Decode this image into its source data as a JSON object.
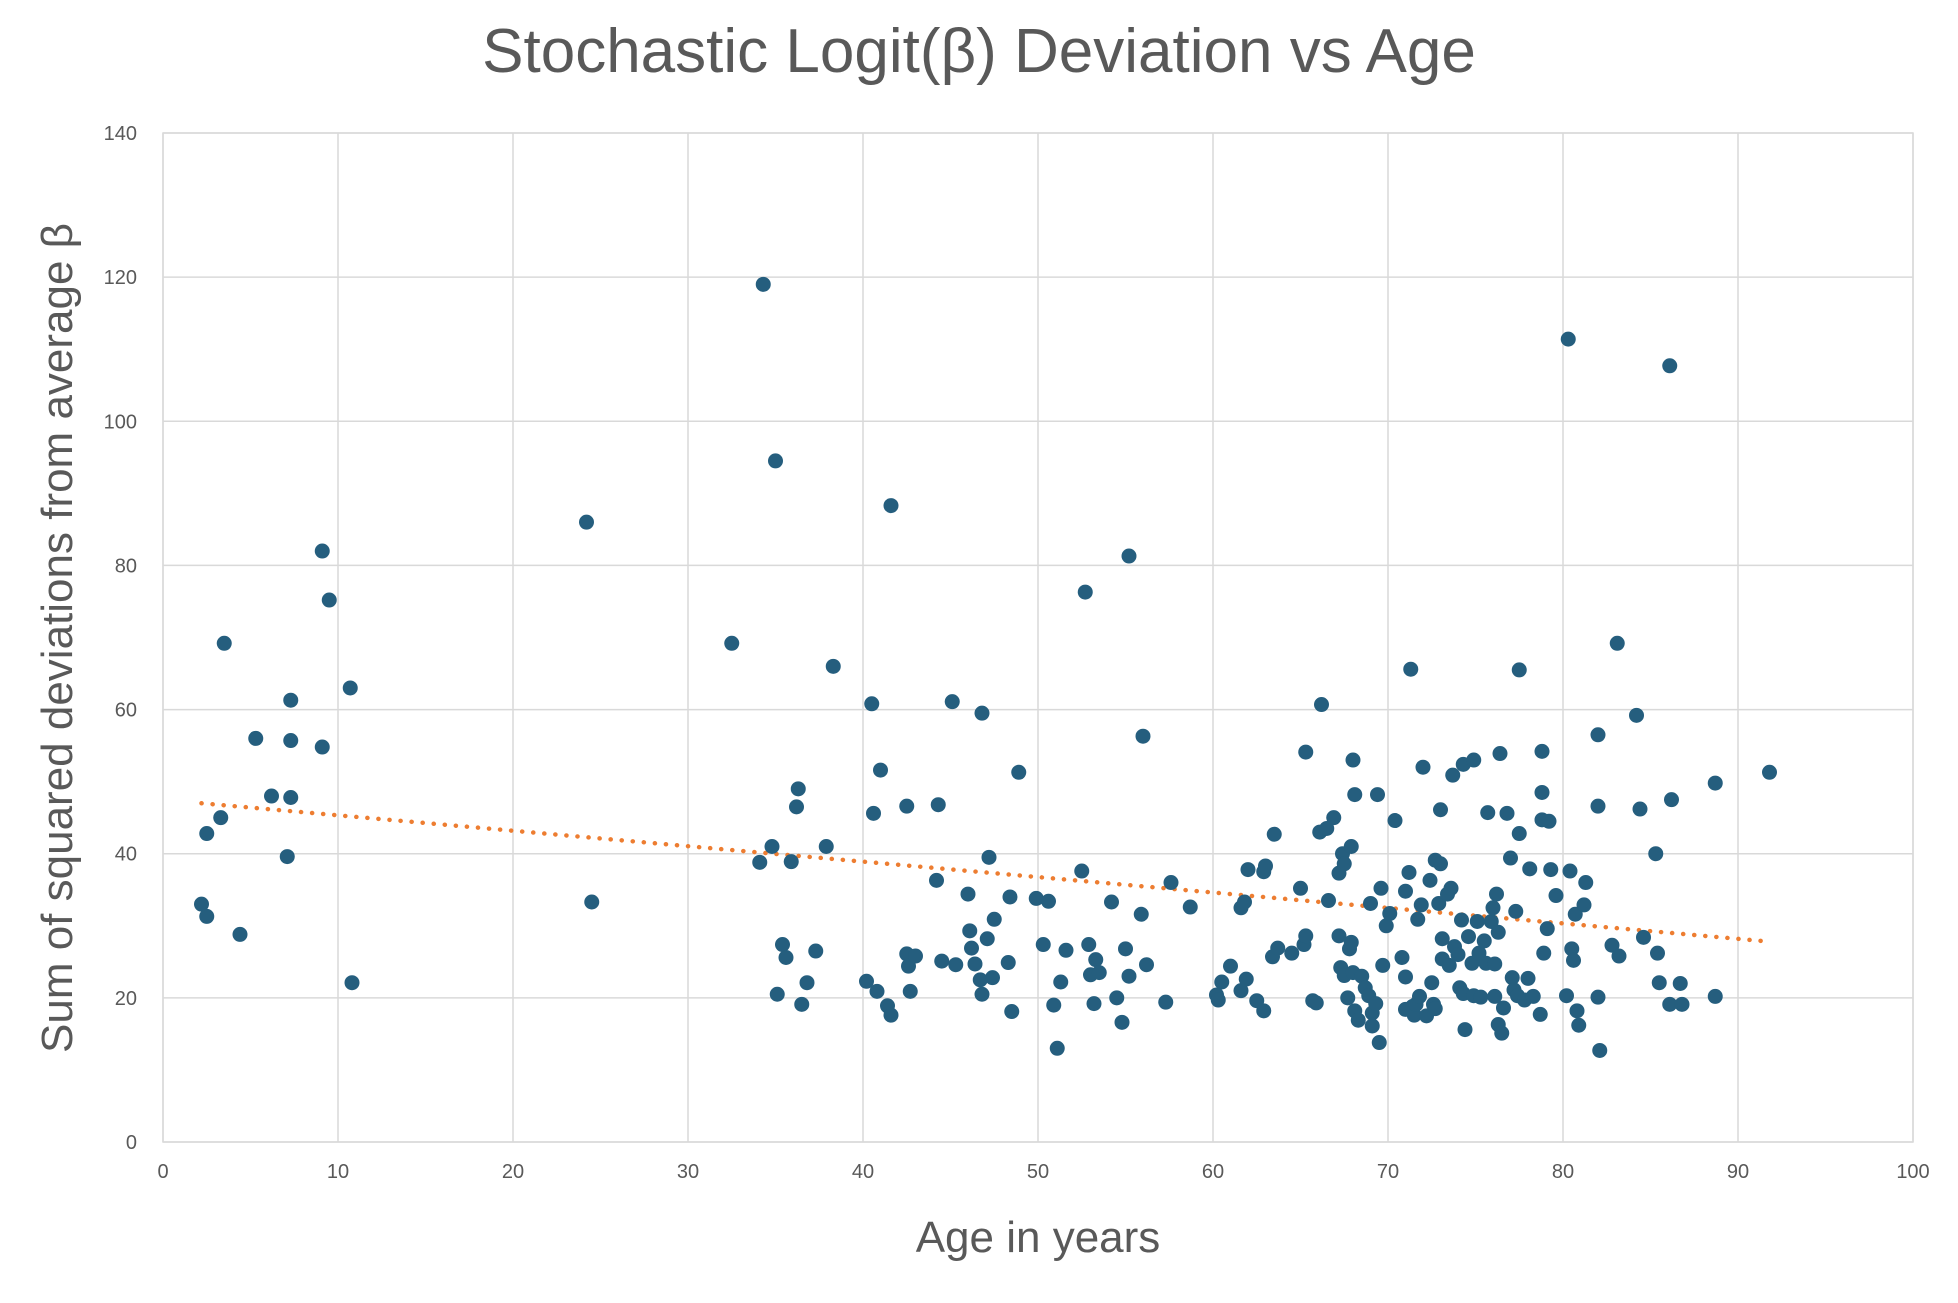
{
  "chart_data": {
    "type": "scatter",
    "title": "Stochastic Logit(β) Deviation vs Age",
    "xlabel": "Age in years",
    "ylabel": "Sum of squared deviations from average β",
    "xlim": [
      0,
      100
    ],
    "ylim": [
      0,
      140
    ],
    "x_ticks": [
      0,
      10,
      20,
      30,
      40,
      50,
      60,
      70,
      80,
      90,
      100
    ],
    "y_ticks": [
      0,
      20,
      40,
      60,
      80,
      100,
      120,
      140
    ],
    "grid": true,
    "legend": "none",
    "colors": {
      "points": "#255e7e",
      "trendline": "#ed7d31",
      "grid": "#d9d9d9",
      "text": "#595959"
    },
    "trendline": {
      "type": "linear",
      "style": "dotted",
      "x": [
        2.2,
        91.8
      ],
      "y": [
        47.0,
        27.8
      ]
    },
    "series": [
      {
        "points": [
          [
            2.2,
            33.0
          ],
          [
            2.5,
            31.3
          ],
          [
            2.5,
            42.8
          ],
          [
            3.3,
            45.0
          ],
          [
            3.5,
            69.2
          ],
          [
            4.4,
            28.8
          ],
          [
            5.3,
            56.0
          ],
          [
            6.2,
            48.0
          ],
          [
            7.1,
            39.6
          ],
          [
            7.3,
            61.3
          ],
          [
            7.3,
            55.7
          ],
          [
            7.3,
            47.8
          ],
          [
            9.1,
            82.0
          ],
          [
            9.1,
            54.8
          ],
          [
            9.5,
            75.2
          ],
          [
            10.7,
            63.0
          ],
          [
            10.8,
            22.1
          ],
          [
            24.2,
            86.0
          ],
          [
            24.5,
            33.3
          ],
          [
            32.5,
            69.2
          ],
          [
            34.1,
            38.8
          ],
          [
            34.3,
            119.0
          ],
          [
            34.8,
            41.0
          ],
          [
            35.0,
            94.5
          ],
          [
            35.1,
            20.5
          ],
          [
            35.4,
            27.4
          ],
          [
            35.6,
            25.6
          ],
          [
            35.9,
            38.9
          ],
          [
            36.2,
            46.5
          ],
          [
            36.3,
            49.0
          ],
          [
            36.5,
            19.1
          ],
          [
            36.8,
            22.1
          ],
          [
            37.3,
            26.5
          ],
          [
            37.9,
            41.0
          ],
          [
            38.3,
            66.0
          ],
          [
            40.2,
            22.3
          ],
          [
            40.5,
            60.8
          ],
          [
            40.6,
            45.6
          ],
          [
            40.8,
            20.9
          ],
          [
            41.0,
            51.6
          ],
          [
            41.4,
            18.9
          ],
          [
            41.6,
            17.6
          ],
          [
            41.6,
            88.3
          ],
          [
            42.5,
            46.6
          ],
          [
            42.5,
            26.1
          ],
          [
            42.6,
            24.4
          ],
          [
            42.7,
            20.9
          ],
          [
            43.0,
            25.8
          ],
          [
            44.2,
            36.3
          ],
          [
            44.3,
            46.8
          ],
          [
            44.5,
            25.1
          ],
          [
            45.1,
            61.1
          ],
          [
            45.3,
            24.6
          ],
          [
            46.0,
            34.4
          ],
          [
            46.1,
            29.3
          ],
          [
            46.2,
            26.9
          ],
          [
            46.4,
            24.7
          ],
          [
            46.7,
            22.5
          ],
          [
            46.8,
            59.5
          ],
          [
            46.8,
            20.5
          ],
          [
            47.1,
            28.2
          ],
          [
            47.2,
            39.5
          ],
          [
            47.4,
            22.8
          ],
          [
            47.5,
            30.9
          ],
          [
            48.4,
            34.0
          ],
          [
            48.5,
            18.1
          ],
          [
            48.3,
            24.9
          ],
          [
            48.9,
            51.3
          ],
          [
            49.9,
            33.8
          ],
          [
            50.3,
            27.4
          ],
          [
            50.6,
            33.4
          ],
          [
            50.9,
            19.0
          ],
          [
            51.1,
            13.0
          ],
          [
            51.3,
            22.2
          ],
          [
            51.6,
            26.6
          ],
          [
            52.5,
            37.6
          ],
          [
            52.7,
            76.3
          ],
          [
            52.9,
            27.4
          ],
          [
            53.0,
            23.2
          ],
          [
            53.2,
            19.2
          ],
          [
            53.3,
            25.3
          ],
          [
            53.5,
            23.5
          ],
          [
            54.2,
            33.3
          ],
          [
            54.5,
            20.0
          ],
          [
            54.8,
            16.6
          ],
          [
            55.0,
            26.8
          ],
          [
            55.2,
            81.3
          ],
          [
            55.2,
            23.0
          ],
          [
            55.9,
            31.6
          ],
          [
            56.0,
            56.3
          ],
          [
            56.2,
            24.6
          ],
          [
            57.3,
            19.4
          ],
          [
            57.6,
            36.0
          ],
          [
            58.7,
            32.6
          ],
          [
            60.2,
            20.4
          ],
          [
            60.3,
            19.7
          ],
          [
            60.5,
            22.2
          ],
          [
            61.0,
            24.4
          ],
          [
            61.6,
            21.0
          ],
          [
            61.6,
            32.5
          ],
          [
            61.8,
            33.3
          ],
          [
            61.9,
            22.6
          ],
          [
            62.0,
            37.8
          ],
          [
            62.5,
            19.6
          ],
          [
            62.9,
            18.2
          ],
          [
            62.9,
            37.5
          ],
          [
            63.0,
            38.3
          ],
          [
            63.4,
            25.7
          ],
          [
            63.5,
            42.7
          ],
          [
            63.7,
            26.9
          ],
          [
            64.5,
            26.2
          ],
          [
            65.0,
            35.2
          ],
          [
            65.2,
            27.4
          ],
          [
            65.3,
            54.1
          ],
          [
            65.3,
            28.6
          ],
          [
            65.7,
            19.6
          ],
          [
            65.9,
            19.3
          ],
          [
            66.1,
            43.0
          ],
          [
            66.2,
            60.7
          ],
          [
            66.5,
            43.5
          ],
          [
            66.6,
            33.5
          ],
          [
            66.9,
            45.0
          ],
          [
            67.2,
            28.6
          ],
          [
            67.2,
            37.3
          ],
          [
            67.3,
            24.2
          ],
          [
            67.4,
            40.0
          ],
          [
            67.5,
            23.1
          ],
          [
            67.5,
            38.6
          ],
          [
            67.7,
            20.0
          ],
          [
            67.8,
            26.8
          ],
          [
            67.9,
            27.7
          ],
          [
            67.9,
            41.0
          ],
          [
            68.0,
            23.5
          ],
          [
            68.0,
            53.0
          ],
          [
            68.1,
            48.2
          ],
          [
            68.1,
            18.2
          ],
          [
            68.3,
            16.9
          ],
          [
            68.5,
            23.0
          ],
          [
            68.7,
            21.4
          ],
          [
            68.9,
            20.3
          ],
          [
            69.0,
            33.1
          ],
          [
            69.1,
            16.1
          ],
          [
            69.1,
            17.9
          ],
          [
            69.3,
            19.2
          ],
          [
            69.4,
            48.2
          ],
          [
            69.5,
            13.8
          ],
          [
            69.6,
            35.2
          ],
          [
            69.7,
            24.5
          ],
          [
            69.9,
            30.0
          ],
          [
            70.1,
            31.7
          ],
          [
            70.4,
            44.6
          ],
          [
            70.8,
            25.6
          ],
          [
            71.0,
            34.8
          ],
          [
            71.0,
            18.4
          ],
          [
            71.0,
            22.9
          ],
          [
            71.2,
            37.4
          ],
          [
            71.3,
            65.6
          ],
          [
            71.4,
            18.8
          ],
          [
            71.5,
            17.6
          ],
          [
            71.6,
            19.1
          ],
          [
            71.7,
            30.9
          ],
          [
            71.8,
            20.2
          ],
          [
            71.9,
            32.9
          ],
          [
            72.0,
            52.0
          ],
          [
            72.2,
            17.5
          ],
          [
            72.4,
            36.3
          ],
          [
            72.5,
            22.1
          ],
          [
            72.6,
            19.1
          ],
          [
            72.7,
            39.1
          ],
          [
            72.7,
            18.5
          ],
          [
            72.9,
            33.1
          ],
          [
            73.0,
            46.1
          ],
          [
            73.0,
            38.6
          ],
          [
            73.1,
            25.4
          ],
          [
            73.1,
            28.2
          ],
          [
            73.4,
            34.4
          ],
          [
            73.5,
            24.5
          ],
          [
            73.6,
            35.2
          ],
          [
            73.7,
            50.9
          ],
          [
            73.8,
            27.1
          ],
          [
            74.0,
            26.0
          ],
          [
            74.1,
            21.4
          ],
          [
            74.2,
            30.8
          ],
          [
            74.3,
            52.4
          ],
          [
            74.3,
            20.6
          ],
          [
            74.4,
            15.6
          ],
          [
            74.6,
            28.5
          ],
          [
            74.8,
            24.8
          ],
          [
            74.9,
            53.0
          ],
          [
            74.9,
            20.3
          ],
          [
            75.1,
            30.6
          ],
          [
            75.2,
            26.2
          ],
          [
            75.3,
            20.1
          ],
          [
            75.5,
            27.9
          ],
          [
            75.6,
            24.8
          ],
          [
            75.7,
            45.7
          ],
          [
            75.9,
            30.6
          ],
          [
            76.0,
            32.5
          ],
          [
            76.1,
            24.7
          ],
          [
            76.1,
            20.2
          ],
          [
            76.2,
            34.4
          ],
          [
            76.3,
            16.3
          ],
          [
            76.3,
            29.1
          ],
          [
            76.4,
            53.9
          ],
          [
            76.5,
            15.1
          ],
          [
            76.6,
            18.6
          ],
          [
            76.8,
            45.6
          ],
          [
            77.0,
            39.4
          ],
          [
            77.1,
            22.8
          ],
          [
            77.2,
            21.1
          ],
          [
            77.3,
            32.0
          ],
          [
            77.4,
            20.3
          ],
          [
            77.5,
            42.8
          ],
          [
            77.5,
            65.5
          ],
          [
            77.8,
            19.7
          ],
          [
            78.0,
            22.7
          ],
          [
            78.1,
            37.9
          ],
          [
            78.3,
            20.2
          ],
          [
            78.7,
            17.7
          ],
          [
            78.8,
            54.2
          ],
          [
            78.8,
            48.5
          ],
          [
            78.8,
            44.7
          ],
          [
            78.9,
            26.2
          ],
          [
            79.1,
            29.6
          ],
          [
            79.2,
            44.5
          ],
          [
            79.3,
            37.8
          ],
          [
            79.6,
            34.2
          ],
          [
            80.2,
            20.3
          ],
          [
            80.3,
            111.4
          ],
          [
            80.4,
            37.6
          ],
          [
            80.5,
            26.8
          ],
          [
            80.6,
            25.2
          ],
          [
            80.7,
            31.6
          ],
          [
            80.8,
            18.2
          ],
          [
            80.9,
            16.2
          ],
          [
            81.2,
            32.9
          ],
          [
            81.3,
            36.0
          ],
          [
            82.0,
            20.1
          ],
          [
            82.0,
            56.5
          ],
          [
            82.0,
            46.6
          ],
          [
            82.1,
            12.7
          ],
          [
            82.8,
            27.3
          ],
          [
            83.1,
            69.2
          ],
          [
            83.2,
            25.8
          ],
          [
            84.2,
            59.2
          ],
          [
            84.4,
            46.2
          ],
          [
            84.6,
            28.4
          ],
          [
            85.3,
            40.0
          ],
          [
            85.4,
            26.2
          ],
          [
            85.5,
            22.1
          ],
          [
            86.1,
            107.7
          ],
          [
            86.1,
            19.1
          ],
          [
            86.2,
            47.5
          ],
          [
            86.7,
            22.0
          ],
          [
            86.8,
            19.1
          ],
          [
            88.7,
            49.8
          ],
          [
            88.7,
            20.2
          ],
          [
            91.8,
            51.3
          ]
        ]
      }
    ]
  }
}
